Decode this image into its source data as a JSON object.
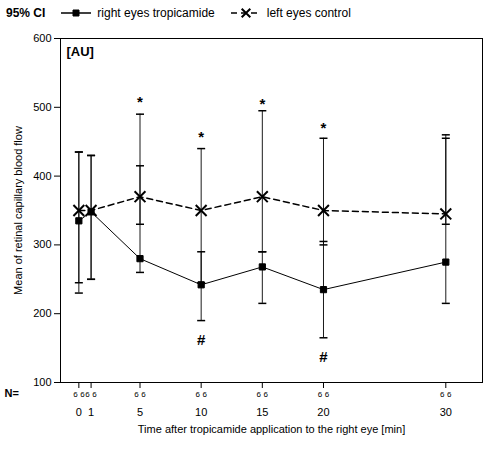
{
  "chart_data": {
    "type": "line",
    "xlabel": "Time after tropicamide application to the right eye [min]",
    "ylabel": "Mean of retinal capillary blood flow",
    "unit_label": "[AU]",
    "ci_label": "95% CI",
    "n_label": "N=",
    "x": [
      0,
      1,
      5,
      10,
      15,
      20,
      30
    ],
    "xlim": [
      -1.5,
      33
    ],
    "xticks": [
      0,
      1,
      5,
      10,
      15,
      20,
      30
    ],
    "ylim": [
      100,
      600
    ],
    "yticks": [
      100,
      200,
      300,
      400,
      500,
      600
    ],
    "grid": false,
    "legend": "top",
    "series": [
      {
        "name": "right eyes tropicamide",
        "color": "black",
        "marker": "square",
        "line_style": "solid",
        "values": [
          335,
          348,
          280,
          242,
          268,
          235,
          275
        ],
        "upper": [
          435,
          430,
          415,
          290,
          290,
          305,
          455
        ],
        "lower": [
          230,
          250,
          260,
          190,
          215,
          165,
          215
        ],
        "n": [
          6,
          6,
          6,
          6,
          6,
          6,
          6
        ]
      },
      {
        "name": "left eyes control",
        "color": "black",
        "marker": "x",
        "line_style": "dashed",
        "values": [
          350,
          350,
          370,
          350,
          370,
          350,
          345
        ],
        "upper": [
          435,
          430,
          490,
          440,
          495,
          455,
          460
        ],
        "lower": [
          245,
          250,
          330,
          245,
          290,
          300,
          330
        ],
        "n": [
          6,
          6,
          6,
          6,
          6,
          6,
          6
        ]
      }
    ],
    "annotations": [
      {
        "text": "*",
        "x": 5,
        "y": 500
      },
      {
        "text": "*",
        "x": 10,
        "y": 450
      },
      {
        "text": "*",
        "x": 15,
        "y": 498
      },
      {
        "text": "*",
        "x": 20,
        "y": 462
      },
      {
        "text": "#",
        "x": 10,
        "y": 155
      },
      {
        "text": "#",
        "x": 20,
        "y": 130
      }
    ]
  }
}
